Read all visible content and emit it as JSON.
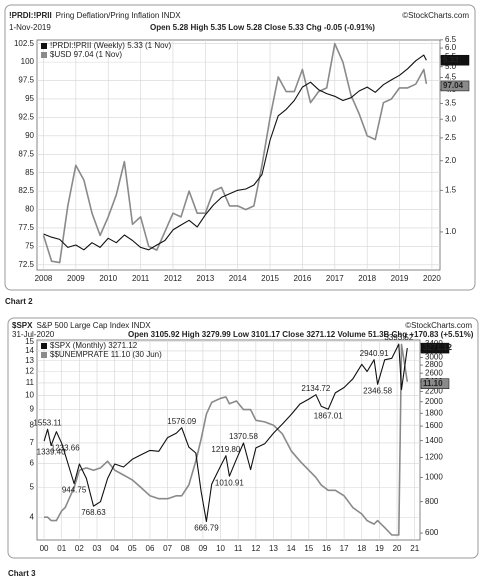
{
  "chart_data": [
    {
      "type": "line",
      "title": "!PRDI:!PRII",
      "subtitle": "Pring Deflation/Pring Inflation INDX",
      "source": "©StockCharts.com",
      "date": "1-Nov-2019",
      "quote": "Open 5.28  High 5.35  Low 5.28  Close 5.33  Chg -0.05 (-0.91%)",
      "caption": "Chart 2",
      "x": [
        2008,
        2008.25,
        2008.5,
        2008.75,
        2009,
        2009.25,
        2009.5,
        2009.75,
        2010,
        2010.25,
        2010.5,
        2010.75,
        2011,
        2011.25,
        2011.5,
        2011.75,
        2012,
        2012.25,
        2012.5,
        2012.75,
        2013,
        2013.25,
        2013.5,
        2013.75,
        2014,
        2014.25,
        2014.5,
        2014.75,
        2015,
        2015.25,
        2015.5,
        2015.75,
        2016,
        2016.25,
        2016.5,
        2016.75,
        2017,
        2017.25,
        2017.5,
        2017.75,
        2018,
        2018.25,
        2018.5,
        2018.75,
        2019,
        2019.25,
        2019.5,
        2019.75,
        2019.83
      ],
      "xlim": [
        2007.8,
        2020.25
      ],
      "xticks": [
        2008,
        2009,
        2010,
        2011,
        2012,
        2013,
        2014,
        2015,
        2016,
        2017,
        2018,
        2019,
        2020
      ],
      "ylim": [
        71.8,
        103.0
      ],
      "yticks": [
        72.5,
        75,
        77.5,
        80,
        82.5,
        85,
        87.5,
        90,
        92.5,
        95,
        97.5,
        100,
        102.5
      ],
      "ylog": false,
      "y2lim": [
        0.69,
        6.49
      ],
      "y2ticks": [
        {
          "value": 1,
          "label": "1.0"
        },
        1.5,
        {
          "value": 2,
          "label": "2.0"
        },
        2.5,
        {
          "value": 3,
          "label": "3.0"
        },
        3.5,
        {
          "value": 4,
          "label": "4.0"
        },
        4.5,
        {
          "value": 5,
          "label": "5.0"
        },
        5.5,
        {
          "value": 6,
          "label": "6.0"
        },
        6.5
      ],
      "y2log": true,
      "grid": true,
      "series": [
        {
          "name": "!PRDI:!PRII (Weekly) 5.33 (1 Nov)",
          "color": "#111111",
          "axis": "y2",
          "values": [
            0.98,
            0.95,
            0.93,
            0.86,
            0.88,
            0.84,
            0.9,
            0.86,
            0.94,
            0.9,
            0.97,
            0.92,
            0.86,
            0.84,
            0.88,
            0.92,
            1.02,
            1.07,
            1.12,
            1.05,
            1.18,
            1.3,
            1.4,
            1.45,
            1.5,
            1.52,
            1.58,
            1.75,
            2.45,
            3.1,
            3.3,
            3.6,
            4.1,
            4.3,
            4.0,
            3.85,
            3.75,
            3.6,
            3.7,
            3.95,
            4.1,
            3.9,
            4.2,
            4.4,
            4.6,
            4.9,
            5.3,
            5.6,
            5.33
          ],
          "value_labels": [
            null,
            null,
            null,
            null,
            null,
            null,
            null,
            null,
            null,
            null,
            null,
            null,
            null,
            null,
            null,
            null,
            null,
            null,
            null,
            null,
            null,
            null,
            null,
            null,
            null,
            null,
            null,
            null,
            null,
            null,
            null,
            null,
            null,
            null,
            null,
            null,
            null,
            null,
            null,
            null,
            null,
            null,
            null,
            null,
            null,
            null,
            null,
            null,
            "5.33"
          ]
        },
        {
          "name": "$USD 97.04 (1 Nov)",
          "color": "#8a8a8a",
          "axis": "y",
          "values": [
            76.5,
            73.0,
            72.8,
            80.5,
            86.0,
            84.0,
            79.5,
            76.5,
            79.0,
            82.0,
            86.5,
            78.0,
            79.0,
            75.0,
            74.5,
            77.0,
            79.5,
            79.0,
            82.5,
            79.5,
            79.5,
            82.5,
            83.0,
            80.5,
            80.5,
            80.0,
            80.5,
            86.0,
            92.5,
            98.0,
            96.0,
            96.0,
            99.0,
            94.5,
            96.0,
            96.5,
            102.5,
            100.0,
            95.5,
            93.0,
            90.0,
            89.5,
            94.5,
            95.0,
            96.5,
            96.5,
            97.0,
            99.0,
            97.04
          ],
          "value_labels": [
            null,
            null,
            null,
            null,
            null,
            null,
            null,
            null,
            null,
            null,
            null,
            null,
            null,
            null,
            null,
            null,
            null,
            null,
            null,
            null,
            null,
            null,
            null,
            null,
            null,
            null,
            null,
            null,
            null,
            null,
            null,
            null,
            null,
            null,
            null,
            null,
            null,
            null,
            null,
            null,
            null,
            null,
            null,
            null,
            null,
            null,
            null,
            null,
            "97.04"
          ]
        }
      ]
    },
    {
      "type": "line",
      "title": "$SPX",
      "subtitle": "S&P 500 Large Cap Index INDX",
      "source": "©StockCharts.com",
      "date": "31-Jul-2020",
      "quote": "Open 3105.92  High 3279.99  Low 3101.17  Close 3271.12  Volume 51.3B  Chg +170.83 (+5.51%)",
      "caption": "Chart 3",
      "x": [
        2000,
        2000.2,
        2000.4,
        2000.7,
        2001,
        2001.2,
        2001.7,
        2002,
        2002.4,
        2002.8,
        2003.2,
        2003.6,
        2004,
        2004.5,
        2005,
        2005.5,
        2006,
        2006.5,
        2007,
        2007.5,
        2007.8,
        2008.2,
        2008.6,
        2008.9,
        2009.2,
        2009.5,
        2010,
        2010.3,
        2010.5,
        2010.9,
        2011.3,
        2011.7,
        2012,
        2012.5,
        2013,
        2013.5,
        2014,
        2014.5,
        2015,
        2015.4,
        2015.7,
        2016.1,
        2016.5,
        2017,
        2017.5,
        2018,
        2018.3,
        2018.7,
        2018.9,
        2019.3,
        2019.7,
        2020.1,
        2020.25,
        2020.58
      ],
      "xlim": [
        1999.6,
        2021.3
      ],
      "xticks": [
        {
          "value": 2000,
          "label": "00"
        },
        {
          "value": 2001,
          "label": "01"
        },
        {
          "value": 2002,
          "label": "02"
        },
        {
          "value": 2003,
          "label": "03"
        },
        {
          "value": 2004,
          "label": "04"
        },
        {
          "value": 2005,
          "label": "05"
        },
        {
          "value": 2006,
          "label": "06"
        },
        {
          "value": 2007,
          "label": "07"
        },
        {
          "value": 2008,
          "label": "08"
        },
        {
          "value": 2009,
          "label": "09"
        },
        {
          "value": 2010,
          "label": "10"
        },
        {
          "value": 2011,
          "label": "11"
        },
        {
          "value": 2012,
          "label": "12"
        },
        {
          "value": 2013,
          "label": "13"
        },
        {
          "value": 2014,
          "label": "14"
        },
        {
          "value": 2015,
          "label": "15"
        },
        {
          "value": 2016,
          "label": "16"
        },
        {
          "value": 2017,
          "label": "17"
        },
        {
          "value": 2018,
          "label": "18"
        },
        {
          "value": 2019,
          "label": "19"
        },
        {
          "value": 2020,
          "label": "20"
        },
        {
          "value": 2021,
          "label": "21"
        }
      ],
      "ylim": [
        3.37,
        15.2
      ],
      "yticks": [
        4,
        5,
        6,
        7,
        8,
        9,
        10,
        11,
        12,
        13,
        14,
        15
      ],
      "ylog": true,
      "y2lim": [
        563,
        3524
      ],
      "y2ticks": [
        600,
        800,
        1000,
        1200,
        1400,
        1600,
        1800,
        2000,
        2200,
        2400,
        2600,
        2800,
        3000,
        3200,
        3400
      ],
      "y2log": true,
      "grid": true,
      "series": [
        {
          "name": "$SPX (Monthly) 3271.12",
          "color": "#111111",
          "axis": "y2",
          "values": [
            1394,
            1553.11,
            1339.4,
            1520,
            1366,
            1233.66,
            944.75,
            1130,
            990,
            768.63,
            800,
            990,
            1130,
            1100,
            1180,
            1230,
            1280,
            1270,
            1440,
            1500,
            1576.09,
            1320,
            1250,
            880,
            666.79,
            940,
            1110,
            1219.8,
            1010.91,
            1180,
            1370.58,
            1074,
            1310,
            1360,
            1500,
            1630,
            1780,
            1960,
            2050,
            2134.72,
            1920,
            1867.01,
            2170,
            2280,
            2470,
            2820,
            2640,
            2940.91,
            2346.58,
            2940,
            2980,
            3393.52,
            2237,
            3271.12
          ],
          "value_labels": [
            null,
            "1553.11",
            "1339.40",
            null,
            null,
            "1233.66",
            "944.75",
            null,
            null,
            "768.63",
            null,
            null,
            null,
            null,
            null,
            null,
            null,
            null,
            null,
            null,
            "1576.09",
            null,
            null,
            null,
            "666.79",
            null,
            null,
            "1219.80",
            "1010.91",
            null,
            "1370.58",
            null,
            null,
            null,
            null,
            null,
            null,
            null,
            null,
            "2134.72",
            null,
            "1867.01",
            null,
            null,
            null,
            null,
            null,
            "2940.91",
            "2346.58",
            null,
            null,
            "3393.52",
            null,
            "3271.12"
          ]
        },
        {
          "name": "$$UNEMPRATE 11.10 (30 Jun)",
          "color": "#8a8a8a",
          "axis": "y",
          "values": [
            4.0,
            4.0,
            3.9,
            3.9,
            4.2,
            4.3,
            5.0,
            5.7,
            5.8,
            5.7,
            5.8,
            6.1,
            5.7,
            5.5,
            5.3,
            5.0,
            4.7,
            4.6,
            4.6,
            4.7,
            4.7,
            5.1,
            6.1,
            7.2,
            8.7,
            9.5,
            9.8,
            9.9,
            9.4,
            9.6,
            9.0,
            9.0,
            8.3,
            8.2,
            8.0,
            7.5,
            6.6,
            6.1,
            5.7,
            5.4,
            5.1,
            4.9,
            4.9,
            4.7,
            4.3,
            4.1,
            3.9,
            3.8,
            3.9,
            3.7,
            3.5,
            3.5,
            14.7,
            11.1
          ],
          "value_labels": [
            null,
            null,
            null,
            null,
            null,
            null,
            null,
            null,
            null,
            null,
            null,
            null,
            null,
            null,
            null,
            null,
            null,
            null,
            null,
            null,
            null,
            null,
            null,
            null,
            null,
            null,
            null,
            null,
            null,
            null,
            null,
            null,
            null,
            null,
            null,
            null,
            null,
            null,
            null,
            null,
            null,
            null,
            null,
            null,
            null,
            null,
            null,
            null,
            null,
            null,
            null,
            null,
            null,
            "11.10"
          ]
        }
      ]
    }
  ]
}
